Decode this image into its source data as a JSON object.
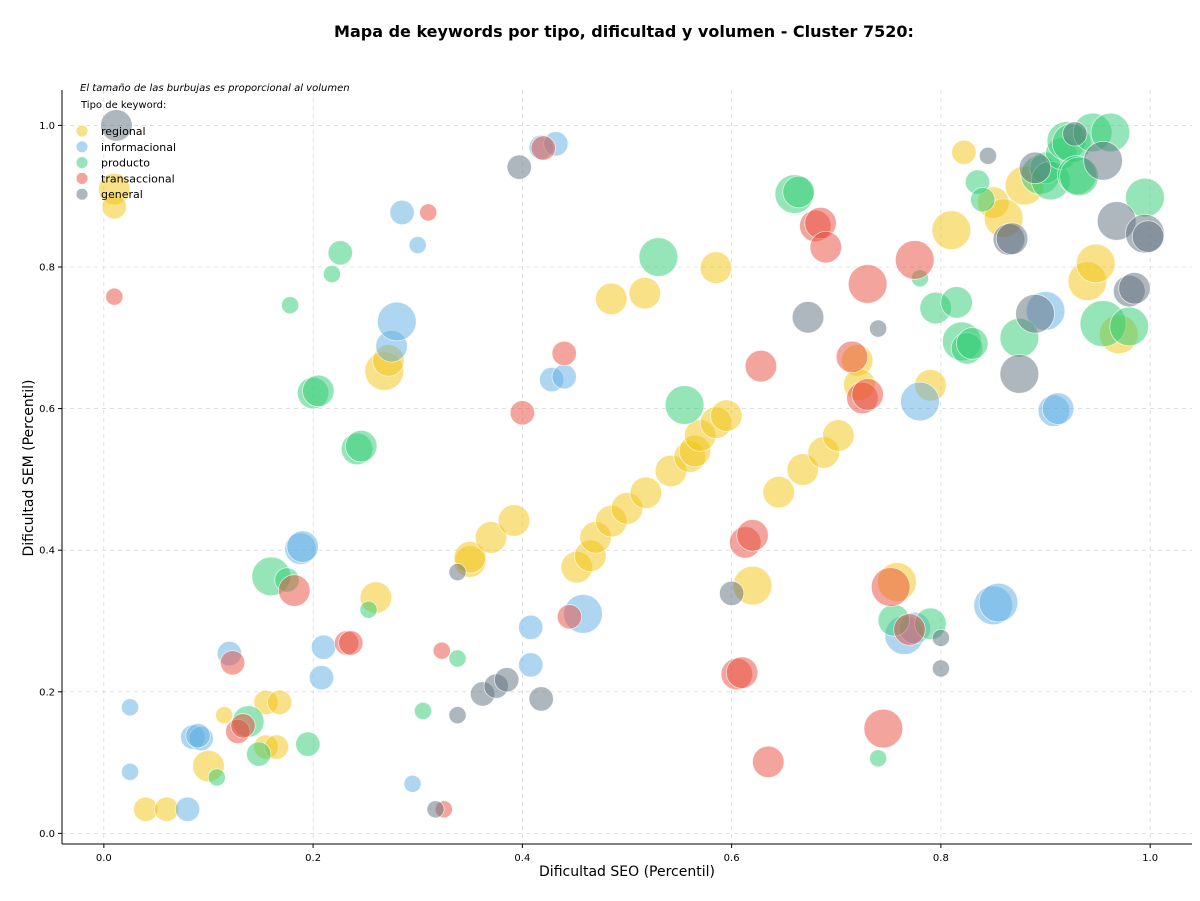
{
  "chart_data": {
    "type": "scatter",
    "title": "Mapa de keywords por tipo, dificultad y volumen - Cluster 7520:",
    "xlabel": "Dificultad SEO (Percentil)",
    "ylabel": "Dificultad SEM (Percentil)",
    "xlim": [
      -0.04,
      1.04
    ],
    "ylim": [
      -0.015,
      1.05
    ],
    "xticks": [
      "0.0",
      "0.2",
      "0.4",
      "0.6",
      "0.8",
      "1.0"
    ],
    "yticks": [
      "0.0",
      "0.2",
      "0.4",
      "0.6",
      "0.8",
      "1.0"
    ],
    "grid": true,
    "legend_position": "top-left",
    "legend_title": "Tipo de keyword:",
    "note": "El tamaño de las burbujas es proporcional al volumen",
    "series": [
      {
        "name": "regional",
        "color": "#f1c40f",
        "points": [
          {
            "x": 0.01,
            "y": 0.91,
            "size": 3
          },
          {
            "x": 0.01,
            "y": 0.885,
            "size": 2
          },
          {
            "x": 0.04,
            "y": 0.034,
            "size": 2
          },
          {
            "x": 0.06,
            "y": 0.034,
            "size": 2
          },
          {
            "x": 0.1,
            "y": 0.095,
            "size": 3
          },
          {
            "x": 0.115,
            "y": 0.167,
            "size": 1
          },
          {
            "x": 0.155,
            "y": 0.185,
            "size": 2
          },
          {
            "x": 0.168,
            "y": 0.185,
            "size": 2
          },
          {
            "x": 0.155,
            "y": 0.122,
            "size": 2
          },
          {
            "x": 0.165,
            "y": 0.122,
            "size": 2
          },
          {
            "x": 0.268,
            "y": 0.653,
            "size": 4
          },
          {
            "x": 0.272,
            "y": 0.668,
            "size": 3
          },
          {
            "x": 0.26,
            "y": 0.333,
            "size": 3
          },
          {
            "x": 0.35,
            "y": 0.384,
            "size": 3
          },
          {
            "x": 0.35,
            "y": 0.39,
            "size": 3
          },
          {
            "x": 0.37,
            "y": 0.418,
            "size": 3
          },
          {
            "x": 0.392,
            "y": 0.442,
            "size": 3
          },
          {
            "x": 0.452,
            "y": 0.376,
            "size": 3
          },
          {
            "x": 0.465,
            "y": 0.392,
            "size": 3
          },
          {
            "x": 0.47,
            "y": 0.418,
            "size": 3
          },
          {
            "x": 0.485,
            "y": 0.441,
            "size": 3
          },
          {
            "x": 0.5,
            "y": 0.459,
            "size": 3
          },
          {
            "x": 0.518,
            "y": 0.481,
            "size": 3
          },
          {
            "x": 0.542,
            "y": 0.512,
            "size": 3
          },
          {
            "x": 0.56,
            "y": 0.532,
            "size": 3
          },
          {
            "x": 0.565,
            "y": 0.54,
            "size": 3
          },
          {
            "x": 0.57,
            "y": 0.562,
            "size": 3
          },
          {
            "x": 0.585,
            "y": 0.58,
            "size": 3
          },
          {
            "x": 0.595,
            "y": 0.59,
            "size": 3
          },
          {
            "x": 0.485,
            "y": 0.755,
            "size": 3
          },
          {
            "x": 0.517,
            "y": 0.763,
            "size": 3
          },
          {
            "x": 0.585,
            "y": 0.799,
            "size": 3
          },
          {
            "x": 0.62,
            "y": 0.35,
            "size": 4
          },
          {
            "x": 0.645,
            "y": 0.482,
            "size": 3
          },
          {
            "x": 0.668,
            "y": 0.514,
            "size": 3
          },
          {
            "x": 0.688,
            "y": 0.538,
            "size": 3
          },
          {
            "x": 0.702,
            "y": 0.562,
            "size": 3
          },
          {
            "x": 0.72,
            "y": 0.668,
            "size": 3
          },
          {
            "x": 0.722,
            "y": 0.634,
            "size": 3
          },
          {
            "x": 0.758,
            "y": 0.355,
            "size": 4
          },
          {
            "x": 0.79,
            "y": 0.633,
            "size": 3
          },
          {
            "x": 0.81,
            "y": 0.852,
            "size": 4
          },
          {
            "x": 0.822,
            "y": 0.962,
            "size": 2
          },
          {
            "x": 0.85,
            "y": 0.891,
            "size": 3
          },
          {
            "x": 0.86,
            "y": 0.869,
            "size": 4
          },
          {
            "x": 0.88,
            "y": 0.915,
            "size": 4
          },
          {
            "x": 0.94,
            "y": 0.78,
            "size": 4
          },
          {
            "x": 0.948,
            "y": 0.805,
            "size": 4
          },
          {
            "x": 0.97,
            "y": 0.705,
            "size": 4
          }
        ]
      },
      {
        "name": "informacional",
        "color": "#5dade2",
        "points": [
          {
            "x": 0.025,
            "y": 0.178,
            "size": 1
          },
          {
            "x": 0.025,
            "y": 0.087,
            "size": 1
          },
          {
            "x": 0.08,
            "y": 0.034,
            "size": 2
          },
          {
            "x": 0.085,
            "y": 0.136,
            "size": 2
          },
          {
            "x": 0.093,
            "y": 0.134,
            "size": 2
          },
          {
            "x": 0.09,
            "y": 0.138,
            "size": 2
          },
          {
            "x": 0.12,
            "y": 0.254,
            "size": 2
          },
          {
            "x": 0.188,
            "y": 0.402,
            "size": 3
          },
          {
            "x": 0.19,
            "y": 0.405,
            "size": 3
          },
          {
            "x": 0.21,
            "y": 0.263,
            "size": 2
          },
          {
            "x": 0.208,
            "y": 0.22,
            "size": 2
          },
          {
            "x": 0.275,
            "y": 0.688,
            "size": 3
          },
          {
            "x": 0.28,
            "y": 0.723,
            "size": 4
          },
          {
            "x": 0.285,
            "y": 0.877,
            "size": 2
          },
          {
            "x": 0.295,
            "y": 0.07,
            "size": 1
          },
          {
            "x": 0.3,
            "y": 0.831,
            "size": 1
          },
          {
            "x": 0.408,
            "y": 0.291,
            "size": 2
          },
          {
            "x": 0.408,
            "y": 0.238,
            "size": 2
          },
          {
            "x": 0.418,
            "y": 0.969,
            "size": 2
          },
          {
            "x": 0.432,
            "y": 0.974,
            "size": 2
          },
          {
            "x": 0.428,
            "y": 0.641,
            "size": 2
          },
          {
            "x": 0.44,
            "y": 0.645,
            "size": 2
          },
          {
            "x": 0.458,
            "y": 0.31,
            "size": 4
          },
          {
            "x": 0.765,
            "y": 0.28,
            "size": 4
          },
          {
            "x": 0.775,
            "y": 0.29,
            "size": 3
          },
          {
            "x": 0.78,
            "y": 0.61,
            "size": 4
          },
          {
            "x": 0.85,
            "y": 0.322,
            "size": 4
          },
          {
            "x": 0.855,
            "y": 0.326,
            "size": 4
          },
          {
            "x": 0.9,
            "y": 0.738,
            "size": 4
          },
          {
            "x": 0.908,
            "y": 0.597,
            "size": 3
          },
          {
            "x": 0.912,
            "y": 0.6,
            "size": 3
          }
        ]
      },
      {
        "name": "producto",
        "color": "#2ecc71",
        "points": [
          {
            "x": 0.108,
            "y": 0.079,
            "size": 1
          },
          {
            "x": 0.138,
            "y": 0.158,
            "size": 3
          },
          {
            "x": 0.148,
            "y": 0.112,
            "size": 2
          },
          {
            "x": 0.16,
            "y": 0.363,
            "size": 4
          },
          {
            "x": 0.175,
            "y": 0.358,
            "size": 2
          },
          {
            "x": 0.178,
            "y": 0.746,
            "size": 1
          },
          {
            "x": 0.195,
            "y": 0.126,
            "size": 2
          },
          {
            "x": 0.2,
            "y": 0.622,
            "size": 3
          },
          {
            "x": 0.205,
            "y": 0.625,
            "size": 3
          },
          {
            "x": 0.218,
            "y": 0.79,
            "size": 1
          },
          {
            "x": 0.226,
            "y": 0.82,
            "size": 2
          },
          {
            "x": 0.242,
            "y": 0.543,
            "size": 3
          },
          {
            "x": 0.246,
            "y": 0.547,
            "size": 3
          },
          {
            "x": 0.253,
            "y": 0.316,
            "size": 1
          },
          {
            "x": 0.305,
            "y": 0.173,
            "size": 1
          },
          {
            "x": 0.338,
            "y": 0.247,
            "size": 1
          },
          {
            "x": 0.53,
            "y": 0.814,
            "size": 4
          },
          {
            "x": 0.555,
            "y": 0.605,
            "size": 4
          },
          {
            "x": 0.66,
            "y": 0.903,
            "size": 4
          },
          {
            "x": 0.664,
            "y": 0.906,
            "size": 3
          },
          {
            "x": 0.74,
            "y": 0.106,
            "size": 1
          },
          {
            "x": 0.755,
            "y": 0.301,
            "size": 3
          },
          {
            "x": 0.78,
            "y": 0.784,
            "size": 1
          },
          {
            "x": 0.79,
            "y": 0.296,
            "size": 3
          },
          {
            "x": 0.795,
            "y": 0.742,
            "size": 3
          },
          {
            "x": 0.815,
            "y": 0.75,
            "size": 3
          },
          {
            "x": 0.82,
            "y": 0.695,
            "size": 4
          },
          {
            "x": 0.825,
            "y": 0.685,
            "size": 3
          },
          {
            "x": 0.83,
            "y": 0.692,
            "size": 3
          },
          {
            "x": 0.835,
            "y": 0.92,
            "size": 2
          },
          {
            "x": 0.84,
            "y": 0.895,
            "size": 2
          },
          {
            "x": 0.875,
            "y": 0.7,
            "size": 4
          },
          {
            "x": 0.895,
            "y": 0.93,
            "size": 4
          },
          {
            "x": 0.9,
            "y": 0.94,
            "size": 3
          },
          {
            "x": 0.905,
            "y": 0.922,
            "size": 4
          },
          {
            "x": 0.915,
            "y": 0.96,
            "size": 3
          },
          {
            "x": 0.92,
            "y": 0.978,
            "size": 4
          },
          {
            "x": 0.925,
            "y": 0.975,
            "size": 4
          },
          {
            "x": 0.93,
            "y": 0.93,
            "size": 4
          },
          {
            "x": 0.932,
            "y": 0.928,
            "size": 4
          },
          {
            "x": 0.945,
            "y": 0.99,
            "size": 4
          },
          {
            "x": 0.955,
            "y": 0.72,
            "size": 5
          },
          {
            "x": 0.962,
            "y": 0.99,
            "size": 4
          },
          {
            "x": 0.98,
            "y": 0.716,
            "size": 4
          },
          {
            "x": 0.995,
            "y": 0.898,
            "size": 4
          }
        ]
      },
      {
        "name": "transaccional",
        "color": "#e74c3c",
        "points": [
          {
            "x": 0.01,
            "y": 0.758,
            "size": 1
          },
          {
            "x": 0.123,
            "y": 0.241,
            "size": 2
          },
          {
            "x": 0.128,
            "y": 0.144,
            "size": 2
          },
          {
            "x": 0.133,
            "y": 0.152,
            "size": 2
          },
          {
            "x": 0.182,
            "y": 0.343,
            "size": 3
          },
          {
            "x": 0.232,
            "y": 0.269,
            "size": 2
          },
          {
            "x": 0.236,
            "y": 0.269,
            "size": 2
          },
          {
            "x": 0.31,
            "y": 0.877,
            "size": 1
          },
          {
            "x": 0.323,
            "y": 0.258,
            "size": 1
          },
          {
            "x": 0.325,
            "y": 0.034,
            "size": 1
          },
          {
            "x": 0.4,
            "y": 0.594,
            "size": 2
          },
          {
            "x": 0.42,
            "y": 0.968,
            "size": 2
          },
          {
            "x": 0.44,
            "y": 0.678,
            "size": 2
          },
          {
            "x": 0.445,
            "y": 0.306,
            "size": 2
          },
          {
            "x": 0.605,
            "y": 0.225,
            "size": 3
          },
          {
            "x": 0.61,
            "y": 0.227,
            "size": 3
          },
          {
            "x": 0.613,
            "y": 0.411,
            "size": 3
          },
          {
            "x": 0.62,
            "y": 0.421,
            "size": 3
          },
          {
            "x": 0.628,
            "y": 0.66,
            "size": 3
          },
          {
            "x": 0.635,
            "y": 0.101,
            "size": 3
          },
          {
            "x": 0.68,
            "y": 0.858,
            "size": 3
          },
          {
            "x": 0.685,
            "y": 0.862,
            "size": 3
          },
          {
            "x": 0.69,
            "y": 0.828,
            "size": 3
          },
          {
            "x": 0.715,
            "y": 0.673,
            "size": 3
          },
          {
            "x": 0.725,
            "y": 0.615,
            "size": 3
          },
          {
            "x": 0.73,
            "y": 0.62,
            "size": 3
          },
          {
            "x": 0.73,
            "y": 0.776,
            "size": 4
          },
          {
            "x": 0.745,
            "y": 0.148,
            "size": 4
          },
          {
            "x": 0.752,
            "y": 0.348,
            "size": 4
          },
          {
            "x": 0.77,
            "y": 0.288,
            "size": 3
          },
          {
            "x": 0.775,
            "y": 0.81,
            "size": 4
          }
        ]
      },
      {
        "name": "general",
        "color": "#5d6d7e",
        "points": [
          {
            "x": 0.012,
            "y": 1.0,
            "size": 3
          },
          {
            "x": 0.317,
            "y": 0.034,
            "size": 1
          },
          {
            "x": 0.338,
            "y": 0.369,
            "size": 1
          },
          {
            "x": 0.338,
            "y": 0.167,
            "size": 1
          },
          {
            "x": 0.362,
            "y": 0.197,
            "size": 2
          },
          {
            "x": 0.375,
            "y": 0.208,
            "size": 2
          },
          {
            "x": 0.385,
            "y": 0.217,
            "size": 2
          },
          {
            "x": 0.397,
            "y": 0.941,
            "size": 2
          },
          {
            "x": 0.418,
            "y": 0.19,
            "size": 2
          },
          {
            "x": 0.6,
            "y": 0.339,
            "size": 2
          },
          {
            "x": 0.673,
            "y": 0.729,
            "size": 3
          },
          {
            "x": 0.74,
            "y": 0.713,
            "size": 1
          },
          {
            "x": 0.8,
            "y": 0.276,
            "size": 1
          },
          {
            "x": 0.8,
            "y": 0.233,
            "size": 1
          },
          {
            "x": 0.845,
            "y": 0.957,
            "size": 1
          },
          {
            "x": 0.865,
            "y": 0.839,
            "size": 3
          },
          {
            "x": 0.868,
            "y": 0.84,
            "size": 3
          },
          {
            "x": 0.875,
            "y": 0.649,
            "size": 4
          },
          {
            "x": 0.89,
            "y": 0.734,
            "size": 4
          },
          {
            "x": 0.89,
            "y": 0.94,
            "size": 3
          },
          {
            "x": 0.928,
            "y": 0.988,
            "size": 2
          },
          {
            "x": 0.955,
            "y": 0.95,
            "size": 4
          },
          {
            "x": 0.968,
            "y": 0.865,
            "size": 4
          },
          {
            "x": 0.98,
            "y": 0.766,
            "size": 3
          },
          {
            "x": 0.985,
            "y": 0.77,
            "size": 3
          },
          {
            "x": 0.995,
            "y": 0.847,
            "size": 4
          },
          {
            "x": 0.998,
            "y": 0.843,
            "size": 3
          }
        ]
      }
    ]
  }
}
